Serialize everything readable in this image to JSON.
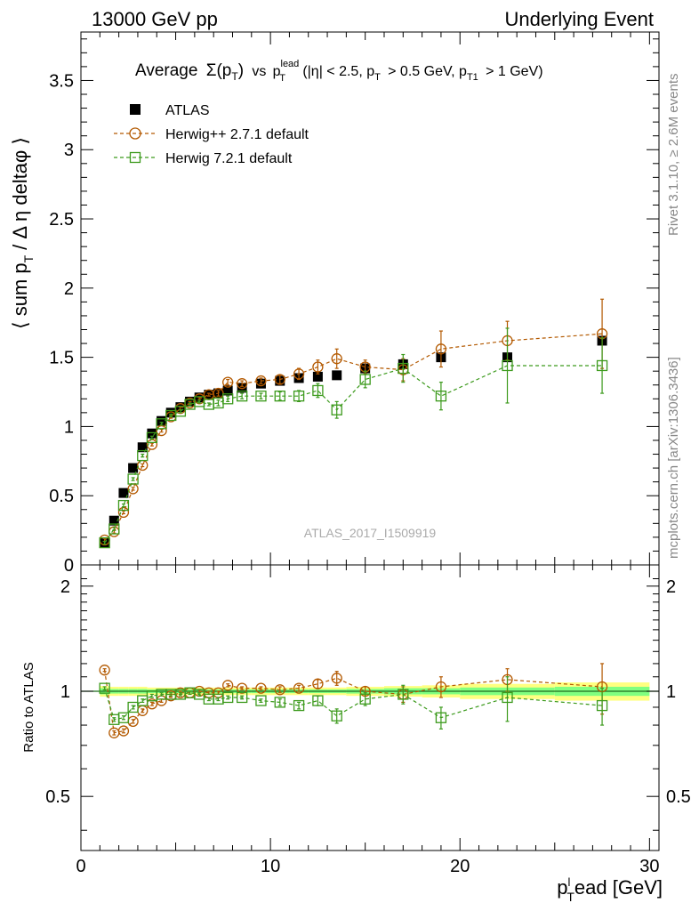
{
  "header": {
    "left": "13000 GeV pp",
    "right": "Underlying Event"
  },
  "side_labels": {
    "rivet": "Rivet 3.1.10, ≥ 2.6M events",
    "mcplots": "mcplots.cern.ch [arXiv:1306.3436]"
  },
  "watermark": "ATLAS_2017_I1509919",
  "colors": {
    "atlas": "#000000",
    "herwigpp": "#b35900",
    "herwig7": "#3c9a1c",
    "band_yellow": "#ffff80",
    "band_green": "#80ff80",
    "ratio_line": "#1f6b1f"
  },
  "chart_data": [
    {
      "type": "scatter",
      "panel": "main",
      "title": "Average Σ(p_T) vs p_T^lead (|η| < 2.5, p_T > 0.5 GeV, p_T1 > 1 GeV)",
      "title_parts": {
        "prefix": "Average",
        "sigma": "Σ(p",
        "sub_t": "T",
        "close": ")",
        "vs": "vs",
        "p": "p",
        "sup_lead": "lead",
        "sub_T": "T",
        "cond1": "(|η| < 2.5, p",
        "cond2": "> 0.5 GeV, p",
        "sub_T1": "T1",
        "cond3": "> 1 GeV)"
      },
      "ylabel": "⟨ sum p_T / Δη deltaφ ⟩",
      "ylabel_parts": {
        "open": "⟨ sum p",
        "sub": "T",
        "rest": "/ Δ η deltaφ ⟩"
      },
      "xlim": [
        0,
        30.5
      ],
      "ylim": [
        0,
        3.85
      ],
      "yticks": [
        0,
        0.5,
        1,
        1.5,
        2,
        2.5,
        3,
        3.5
      ],
      "ytick_labels": [
        "0",
        "0.5",
        "1",
        "1.5",
        "2",
        "2.5",
        "3",
        "3.5"
      ],
      "legend": [
        "ATLAS",
        "Herwig++ 2.7.1 default",
        "Herwig 7.2.1 default"
      ],
      "legend_position": "top-left",
      "x": [
        1.25,
        1.75,
        2.25,
        2.75,
        3.25,
        3.75,
        4.25,
        4.75,
        5.25,
        5.75,
        6.25,
        6.75,
        7.25,
        7.75,
        8.5,
        9.5,
        10.5,
        11.5,
        12.5,
        13.5,
        15.0,
        17.0,
        19.0,
        22.5,
        27.5
      ],
      "series": [
        {
          "name": "ATLAS",
          "y": [
            0.16,
            0.32,
            0.52,
            0.7,
            0.85,
            0.95,
            1.04,
            1.1,
            1.14,
            1.18,
            1.21,
            1.23,
            1.24,
            1.26,
            1.28,
            1.31,
            1.33,
            1.35,
            1.36,
            1.37,
            1.42,
            1.45,
            1.5,
            1.5,
            1.62
          ]
        },
        {
          "name": "Herwig++ 2.7.1 default",
          "y": [
            0.18,
            0.24,
            0.38,
            0.55,
            0.72,
            0.87,
            0.97,
            1.07,
            1.13,
            1.17,
            1.2,
            1.23,
            1.24,
            1.32,
            1.31,
            1.33,
            1.34,
            1.38,
            1.43,
            1.49,
            1.43,
            1.41,
            1.56,
            1.62,
            1.67
          ],
          "err": [
            0.01,
            0.01,
            0.01,
            0.01,
            0.01,
            0.01,
            0.01,
            0.01,
            0.01,
            0.01,
            0.01,
            0.01,
            0.02,
            0.02,
            0.02,
            0.02,
            0.03,
            0.04,
            0.05,
            0.07,
            0.05,
            0.08,
            0.13,
            0.14,
            0.25
          ]
        },
        {
          "name": "Herwig 7.2.1 default",
          "y": [
            0.16,
            0.26,
            0.43,
            0.62,
            0.79,
            0.92,
            1.02,
            1.08,
            1.11,
            1.16,
            1.18,
            1.16,
            1.17,
            1.2,
            1.22,
            1.22,
            1.22,
            1.22,
            1.26,
            1.12,
            1.34,
            1.42,
            1.22,
            1.44,
            1.44
          ],
          "err": [
            0.01,
            0.01,
            0.01,
            0.01,
            0.01,
            0.01,
            0.01,
            0.01,
            0.01,
            0.01,
            0.01,
            0.01,
            0.02,
            0.02,
            0.02,
            0.02,
            0.03,
            0.04,
            0.05,
            0.06,
            0.06,
            0.1,
            0.1,
            0.27,
            0.2
          ]
        }
      ]
    },
    {
      "type": "scatter",
      "panel": "ratio",
      "ylabel": "Ratio to ATLAS",
      "xlabel": "p_T^lead [GeV]",
      "xlabel_parts": {
        "p": "p",
        "sup": "l",
        "sub": "T",
        "rest": "ead [GeV]"
      },
      "xlim": [
        0,
        30.5
      ],
      "xticks": [
        0,
        10,
        20,
        30
      ],
      "xtick_labels": [
        "0",
        "10",
        "20",
        "30"
      ],
      "ylim": [
        0.35,
        2.3
      ],
      "yticks": [
        0.5,
        1,
        2
      ],
      "ytick_labels": [
        "0.5",
        "1",
        "2"
      ],
      "x": [
        1.25,
        1.75,
        2.25,
        2.75,
        3.25,
        3.75,
        4.25,
        4.75,
        5.25,
        5.75,
        6.25,
        6.75,
        7.25,
        7.75,
        8.5,
        9.5,
        10.5,
        11.5,
        12.5,
        13.5,
        15.0,
        17.0,
        19.0,
        22.5,
        27.5
      ],
      "bins": [
        [
          1.0,
          1.5
        ],
        [
          1.5,
          2.0
        ],
        [
          2.0,
          2.5
        ],
        [
          2.5,
          3.0
        ],
        [
          3.0,
          3.5
        ],
        [
          3.5,
          4.0
        ],
        [
          4.0,
          4.5
        ],
        [
          4.5,
          5.0
        ],
        [
          5.0,
          5.5
        ],
        [
          5.5,
          6.0
        ],
        [
          6.0,
          6.5
        ],
        [
          6.5,
          7.0
        ],
        [
          7.0,
          7.5
        ],
        [
          7.5,
          8.0
        ],
        [
          8.0,
          9.0
        ],
        [
          9.0,
          10.0
        ],
        [
          10.0,
          11.0
        ],
        [
          11.0,
          12.0
        ],
        [
          12.0,
          13.0
        ],
        [
          13.0,
          14.0
        ],
        [
          14.0,
          16.0
        ],
        [
          16.0,
          18.0
        ],
        [
          18.0,
          20.0
        ],
        [
          20.0,
          25.0
        ],
        [
          25.0,
          30.0
        ]
      ],
      "band_yellow": [
        0.035,
        0.03,
        0.03,
        0.03,
        0.03,
        0.025,
        0.025,
        0.025,
        0.025,
        0.025,
        0.025,
        0.025,
        0.025,
        0.025,
        0.025,
        0.025,
        0.025,
        0.025,
        0.025,
        0.025,
        0.03,
        0.035,
        0.04,
        0.05,
        0.06
      ],
      "band_green": [
        0.02,
        0.015,
        0.015,
        0.015,
        0.015,
        0.012,
        0.012,
        0.012,
        0.012,
        0.012,
        0.012,
        0.012,
        0.012,
        0.012,
        0.012,
        0.012,
        0.012,
        0.012,
        0.012,
        0.012,
        0.015,
        0.02,
        0.02,
        0.025,
        0.03
      ],
      "series": [
        {
          "name": "Herwig++ 2.7.1 default",
          "y": [
            1.15,
            0.76,
            0.77,
            0.82,
            0.88,
            0.92,
            0.94,
            0.97,
            0.99,
            0.99,
            1.0,
            0.99,
            0.99,
            1.04,
            1.02,
            1.02,
            1.01,
            1.02,
            1.05,
            1.09,
            1.0,
            0.98,
            1.03,
            1.08,
            1.03
          ],
          "err": [
            0.01,
            0.01,
            0.01,
            0.01,
            0.01,
            0.01,
            0.01,
            0.01,
            0.01,
            0.01,
            0.01,
            0.01,
            0.01,
            0.01,
            0.01,
            0.01,
            0.02,
            0.02,
            0.03,
            0.05,
            0.03,
            0.05,
            0.07,
            0.08,
            0.17
          ]
        },
        {
          "name": "Herwig 7.2.1 default",
          "y": [
            1.02,
            0.83,
            0.84,
            0.9,
            0.94,
            0.97,
            0.98,
            0.98,
            0.98,
            0.99,
            0.98,
            0.95,
            0.95,
            0.96,
            0.96,
            0.94,
            0.93,
            0.91,
            0.94,
            0.85,
            0.95,
            0.98,
            0.84,
            0.96,
            0.91
          ],
          "err": [
            0.01,
            0.01,
            0.01,
            0.01,
            0.01,
            0.01,
            0.01,
            0.01,
            0.01,
            0.01,
            0.01,
            0.01,
            0.01,
            0.01,
            0.01,
            0.01,
            0.02,
            0.02,
            0.03,
            0.04,
            0.04,
            0.06,
            0.06,
            0.14,
            0.11
          ]
        }
      ]
    }
  ]
}
